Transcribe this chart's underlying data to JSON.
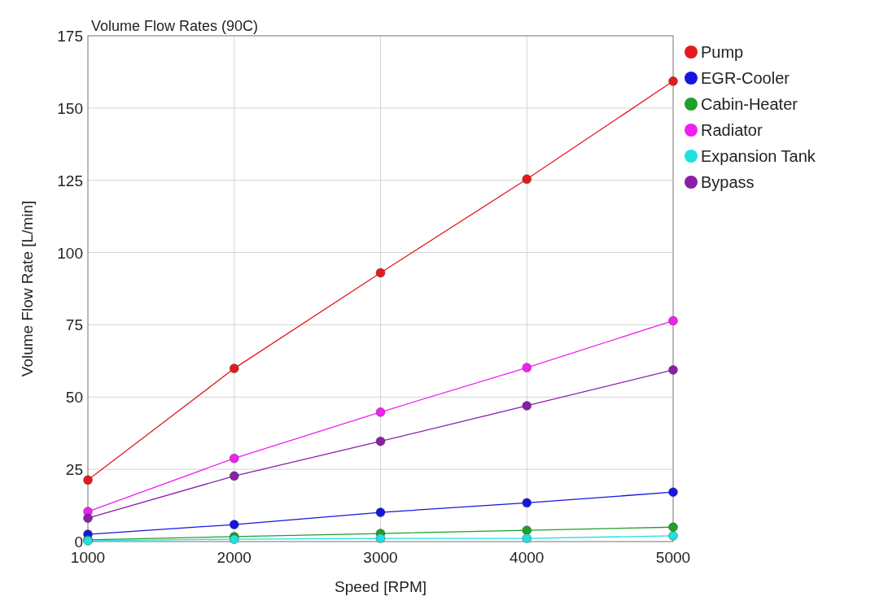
{
  "chart_data": {
    "type": "line",
    "title": "Volume Flow Rates (90C)",
    "xlabel": "Speed [RPM]",
    "ylabel": "Volume Flow Rate [L/min]",
    "x": [
      1000,
      2000,
      3000,
      4000,
      5000
    ],
    "xlim": [
      1000,
      5000
    ],
    "xticks": [
      1000,
      2000,
      3000,
      4000,
      5000
    ],
    "ylim": [
      0,
      175
    ],
    "yticks": [
      0,
      25,
      50,
      75,
      100,
      125,
      150,
      175
    ],
    "grid": true,
    "legend": "right",
    "marker": "circle",
    "line_style": "solid",
    "series": [
      {
        "name": "Pump",
        "color": "#e31a1c",
        "values": [
          21.3,
          59.9,
          93,
          125.4,
          159.3
        ]
      },
      {
        "name": "EGR-Cooler",
        "color": "#1515e0",
        "values": [
          2.5,
          5.9,
          10.1,
          13.4,
          17.1
        ]
      },
      {
        "name": "Cabin-Heater",
        "color": "#1fa02a",
        "values": [
          0.6,
          1.7,
          2.8,
          3.9,
          5.0
        ]
      },
      {
        "name": "Radiator",
        "color": "#f020f0",
        "values": [
          10.4,
          28.8,
          44.8,
          60.2,
          76.4
        ]
      },
      {
        "name": "Expansion Tank",
        "color": "#20e0e0",
        "values": [
          0.3,
          0.8,
          1.1,
          1.1,
          2.0
        ]
      },
      {
        "name": "Bypass",
        "color": "#8a1fa8",
        "values": [
          8.1,
          22.7,
          34.7,
          47,
          59.4
        ]
      }
    ]
  }
}
